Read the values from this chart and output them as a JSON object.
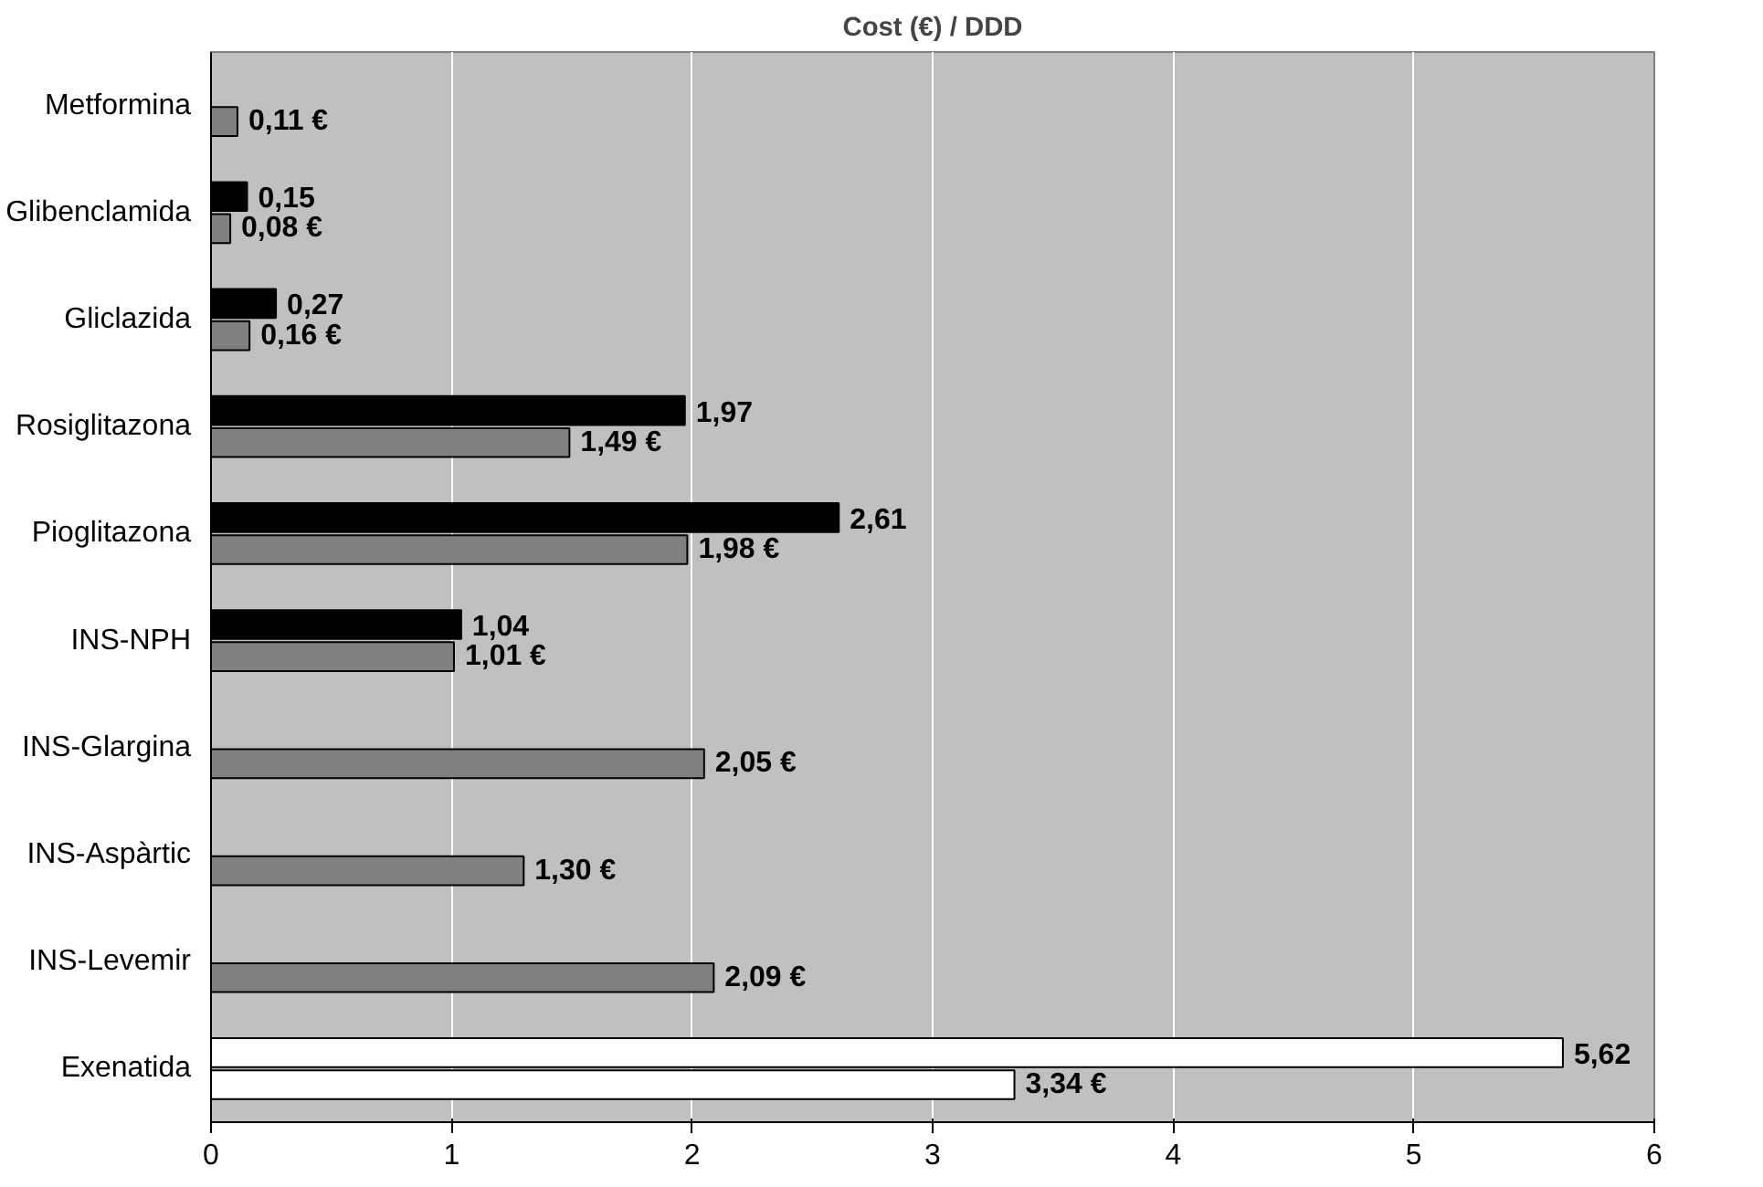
{
  "chart_data": {
    "type": "bar",
    "orientation": "horizontal",
    "title": "Cost (€) / DDD",
    "categories": [
      "Metformina",
      "Glibenclamida",
      "Gliclazida",
      "Rosiglitazona",
      "Pioglitazona",
      "INS-NPH",
      "INS-Glargina",
      "INS-Aspàrtic",
      "INS-Levemir",
      "Exenatida"
    ],
    "series": [
      {
        "colors": [
          "#000000",
          "#000000",
          "#000000",
          "#000000",
          "#000000",
          "#000000",
          "#000000",
          "#000000",
          "#000000",
          "#ffffff"
        ],
        "values": [
          null,
          0.15,
          0.27,
          1.97,
          2.61,
          1.04,
          null,
          null,
          null,
          5.62
        ],
        "value_labels": [
          null,
          "0,15",
          "0,27",
          "1,97",
          "2,61",
          "1,04",
          null,
          null,
          null,
          "5,62"
        ]
      },
      {
        "colors": [
          "#808080",
          "#808080",
          "#808080",
          "#808080",
          "#808080",
          "#808080",
          "#808080",
          "#808080",
          "#808080",
          "#ffffff"
        ],
        "values": [
          0.11,
          0.08,
          0.16,
          1.49,
          1.98,
          1.01,
          2.05,
          1.3,
          2.09,
          3.34
        ],
        "value_labels": [
          "0,11 €",
          "0,08 €",
          "0,16 €",
          "1,49 €",
          "1,98 €",
          "1,01 €",
          "2,05 €",
          "1,30 €",
          "2,09 €",
          "3,34 €"
        ]
      }
    ],
    "xlim": [
      0,
      6
    ],
    "xticks": [
      0,
      1,
      2,
      3,
      4,
      5,
      6
    ],
    "grid": "x"
  }
}
